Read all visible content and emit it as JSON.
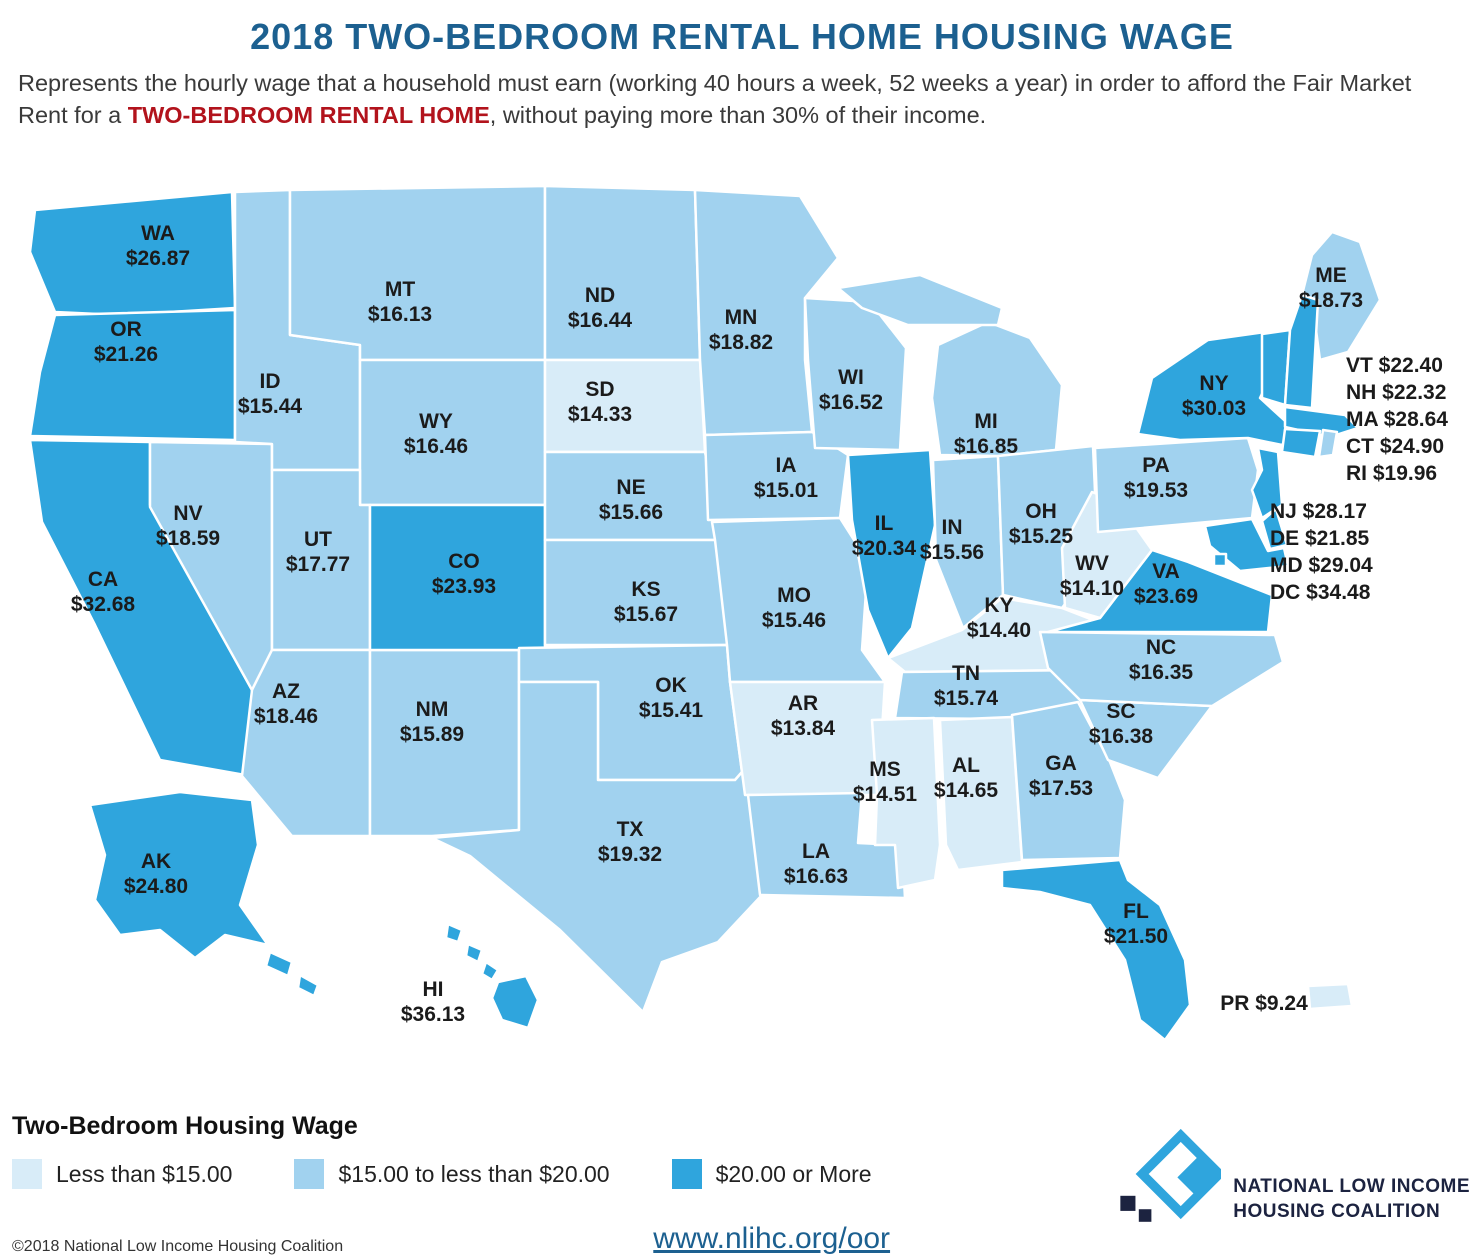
{
  "title": "2018 TWO-BEDROOM RENTAL HOME HOUSING WAGE",
  "subtitle": {
    "part1": "Represents the hourly wage that a household must earn (working 40 hours a week, 52 weeks a year) in order to afford the Fair Market Rent for a ",
    "highlight": "TWO-BEDROOM RENTAL HOME",
    "part2": ", without paying more than 30% of their income."
  },
  "colors": {
    "tier1": "#d8ecf8",
    "tier2": "#a1d2ef",
    "tier3": "#2fa5dd",
    "title": "#1c6090",
    "highlight": "#b2131c",
    "label": "#1b1b1b",
    "navy": "#1c2340"
  },
  "states": [
    {
      "abbr": "WA",
      "value": "$26.87"
    },
    {
      "abbr": "OR",
      "value": "$21.26"
    },
    {
      "abbr": "CA",
      "value": "$32.68"
    },
    {
      "abbr": "NV",
      "value": "$18.59"
    },
    {
      "abbr": "ID",
      "value": "$15.44"
    },
    {
      "abbr": "MT",
      "value": "$16.13"
    },
    {
      "abbr": "WY",
      "value": "$16.46"
    },
    {
      "abbr": "UT",
      "value": "$17.77"
    },
    {
      "abbr": "AZ",
      "value": "$18.46"
    },
    {
      "abbr": "NM",
      "value": "$15.89"
    },
    {
      "abbr": "CO",
      "value": "$23.93"
    },
    {
      "abbr": "ND",
      "value": "$16.44"
    },
    {
      "abbr": "SD",
      "value": "$14.33"
    },
    {
      "abbr": "NE",
      "value": "$15.66"
    },
    {
      "abbr": "KS",
      "value": "$15.67"
    },
    {
      "abbr": "OK",
      "value": "$15.41"
    },
    {
      "abbr": "TX",
      "value": "$19.32"
    },
    {
      "abbr": "MN",
      "value": "$18.82"
    },
    {
      "abbr": "IA",
      "value": "$15.01"
    },
    {
      "abbr": "MO",
      "value": "$15.46"
    },
    {
      "abbr": "AR",
      "value": "$13.84"
    },
    {
      "abbr": "LA",
      "value": "$16.63"
    },
    {
      "abbr": "WI",
      "value": "$16.52"
    },
    {
      "abbr": "IL",
      "value": "$20.34"
    },
    {
      "abbr": "IN",
      "value": "$15.56"
    },
    {
      "abbr": "MI",
      "value": "$16.85"
    },
    {
      "abbr": "OH",
      "value": "$15.25"
    },
    {
      "abbr": "KY",
      "value": "$14.40"
    },
    {
      "abbr": "TN",
      "value": "$15.74"
    },
    {
      "abbr": "MS",
      "value": "$14.51"
    },
    {
      "abbr": "AL",
      "value": "$14.65"
    },
    {
      "abbr": "GA",
      "value": "$17.53"
    },
    {
      "abbr": "FL",
      "value": "$21.50"
    },
    {
      "abbr": "SC",
      "value": "$16.38"
    },
    {
      "abbr": "NC",
      "value": "$16.35"
    },
    {
      "abbr": "VA",
      "value": "$23.69"
    },
    {
      "abbr": "WV",
      "value": "$14.10"
    },
    {
      "abbr": "PA",
      "value": "$19.53"
    },
    {
      "abbr": "NY",
      "value": "$30.03"
    },
    {
      "abbr": "ME",
      "value": "$18.73"
    },
    {
      "abbr": "VT",
      "value": "$22.40"
    },
    {
      "abbr": "NH",
      "value": "$22.32"
    },
    {
      "abbr": "MA",
      "value": "$28.64"
    },
    {
      "abbr": "CT",
      "value": "$24.90"
    },
    {
      "abbr": "RI",
      "value": "$19.96"
    },
    {
      "abbr": "NJ",
      "value": "$28.17"
    },
    {
      "abbr": "DE",
      "value": "$21.85"
    },
    {
      "abbr": "MD",
      "value": "$29.04"
    },
    {
      "abbr": "DC",
      "value": "$34.48"
    },
    {
      "abbr": "AK",
      "value": "$24.80"
    },
    {
      "abbr": "HI",
      "value": "$36.13"
    },
    {
      "abbr": "PR",
      "value": "$9.24"
    }
  ],
  "ne_block_1": [
    "VT",
    "NH",
    "MA",
    "CT",
    "RI"
  ],
  "ne_block_2": [
    "NJ",
    "DE",
    "MD",
    "DC"
  ],
  "legend": {
    "title": "Two-Bedroom Housing Wage",
    "items": [
      {
        "label": "Less than $15.00",
        "tier": 1
      },
      {
        "label": "$15.00 to less than $20.00",
        "tier": 2
      },
      {
        "label": "$20.00 or More",
        "tier": 3
      }
    ]
  },
  "footer": {
    "copyright": "©2018 National Low Income Housing Coalition",
    "url": "www.nlihc.org/oor",
    "org_line1": "NATIONAL LOW INCOME",
    "org_line2": "HOUSING COALITION"
  }
}
